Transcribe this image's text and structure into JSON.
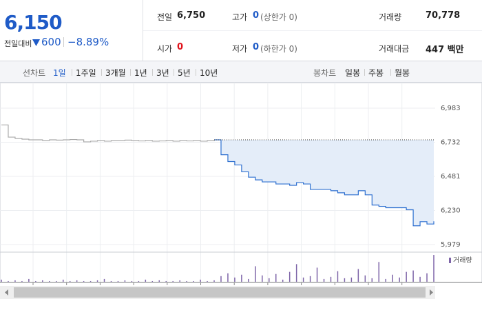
{
  "header": {
    "price": "6,150",
    "change_label": "전일대비",
    "change": "600",
    "change_pct": "−8.89%"
  },
  "stats": {
    "rows": [
      [
        {
          "label": "전일",
          "value": "6,750"
        },
        {
          "label": "고가",
          "value": "0",
          "note": "(상한가 0)"
        },
        {
          "label": "거래량",
          "value": "70,778"
        }
      ],
      [
        {
          "label": "시가",
          "value": "0"
        },
        {
          "label": "저가",
          "value": "0",
          "note": "(하한가 0)"
        },
        {
          "label": "거래대금",
          "value": "447 백만"
        }
      ]
    ]
  },
  "tabs": {
    "line_label": "선차트",
    "line_items": [
      "1일",
      "1주일",
      "3개월",
      "1년",
      "3년",
      "5년",
      "10년"
    ],
    "active": 0,
    "candle_label": "봉차트",
    "candle_items": [
      "일봉",
      "주봉",
      "월봉"
    ]
  },
  "chart_data": {
    "type": "line",
    "ylim": [
      5928,
      7171
    ],
    "yticks": [
      {
        "value": 6983,
        "label": "6,983"
      },
      {
        "value": 6732,
        "label": "6,732"
      },
      {
        "value": 6481,
        "label": "6,481"
      },
      {
        "value": 6230,
        "label": "6,230"
      },
      {
        "value": 5979,
        "label": "5,979"
      }
    ],
    "grid": true,
    "reference_line": 6750,
    "fill": "#e4edf9",
    "series": [
      {
        "color": "#aaaaaa",
        "values": [
          6860,
          6770,
          6760,
          6755,
          6750,
          6750,
          6745,
          6750,
          6748,
          6750,
          6752,
          6750,
          6735,
          6740,
          6745,
          6740,
          6745,
          6745,
          6748,
          6745,
          6742,
          6745,
          6740,
          6742,
          6745,
          6740,
          6745,
          6742,
          6745,
          6740,
          6745,
          6740,
          null,
          null,
          null,
          null,
          null,
          null,
          null,
          null,
          null,
          null,
          null,
          null,
          null,
          null,
          null,
          null,
          null,
          null,
          null,
          null,
          null,
          null,
          null,
          null,
          null,
          null,
          null,
          null,
          null,
          null,
          null,
          null
        ]
      },
      {
        "color": "#2d6fd0",
        "values": [
          null,
          null,
          null,
          null,
          null,
          null,
          null,
          null,
          null,
          null,
          null,
          null,
          null,
          null,
          null,
          null,
          null,
          null,
          null,
          null,
          null,
          null,
          null,
          null,
          null,
          null,
          null,
          null,
          null,
          null,
          null,
          6750,
          6640,
          6590,
          6565,
          6515,
          6475,
          6455,
          6440,
          6440,
          6425,
          6425,
          6415,
          6435,
          6425,
          6385,
          6385,
          6385,
          6375,
          6360,
          6345,
          6345,
          6375,
          6345,
          6270,
          6260,
          6250,
          6250,
          6250,
          6235,
          6117,
          6147,
          6130,
          6150
        ]
      }
    ],
    "volume": {
      "label": "거래량",
      "color": "#7d64a8",
      "ylim": [
        0,
        40
      ],
      "values": [
        3,
        1,
        2,
        1,
        4,
        1,
        2,
        1,
        1,
        3,
        1,
        2,
        1,
        1,
        2,
        4,
        1,
        1,
        2,
        1,
        1,
        3,
        1,
        2,
        1,
        1,
        2,
        1,
        1,
        3,
        1,
        2,
        8,
        12,
        6,
        10,
        4,
        22,
        9,
        5,
        11,
        3,
        14,
        25,
        6,
        8,
        20,
        4,
        7,
        15,
        5,
        6,
        18,
        9,
        5,
        28,
        4,
        10,
        6,
        14,
        16,
        7,
        12,
        38
      ]
    }
  }
}
